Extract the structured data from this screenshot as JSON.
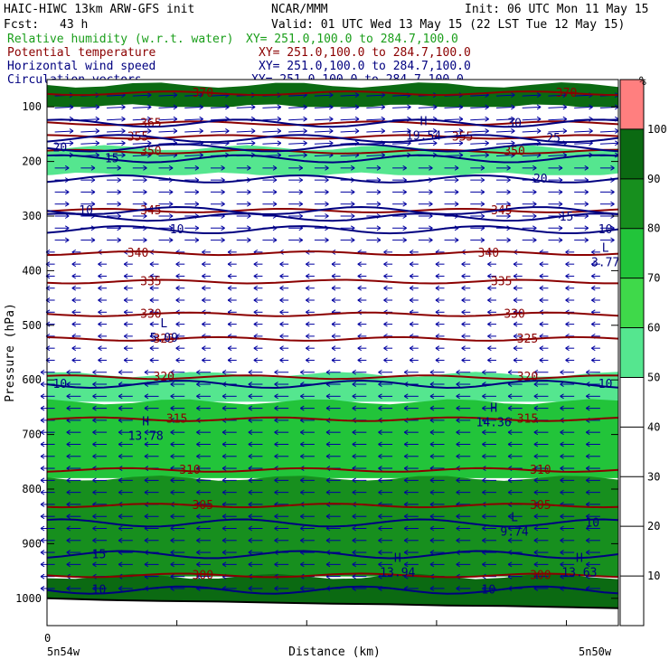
{
  "header": {
    "model": "HAIC-HIWC 13km ARW-GFS init",
    "org": "NCAR/MMM",
    "init": "Init: 06 UTC Mon 11 May 15",
    "fcst_label": "Fcst:",
    "fcst_value": "43 h",
    "valid": "Valid: 01 UTC Wed 13 May 15 (22 LST Tue 12 May 15)"
  },
  "fields": [
    {
      "name": "Relative humidity (w.r.t. water)",
      "xy": "XY= 251.0,100.0 to 284.7,100.0",
      "color": "#1a9e1a"
    },
    {
      "name": "Potential temperature",
      "xy": "XY= 251.0,100.0 to 284.7,100.0",
      "color": "#8b0000"
    },
    {
      "name": "Horizontal wind speed",
      "xy": "XY= 251.0,100.0 to 284.7,100.0",
      "color": "#000080"
    },
    {
      "name": "Circulation vectors",
      "xy": "XY= 251.0,100.0 to 284.7,100.0",
      "color": "#000080"
    }
  ],
  "colors": {
    "rh_fill": [
      "#ffffff",
      "#ffffff",
      "#ffffff",
      "#ffffff",
      "#ffffff",
      "#55e68f",
      "#3fd94a",
      "#22c43a",
      "#178f1e",
      "#0b6a12",
      "#ff7f7f"
    ],
    "theta": "#8b0000",
    "wind": "#000080",
    "vectors": "#0000a0"
  },
  "chart_data": {
    "type": "heatmap",
    "title": "",
    "xlabel": "Distance (km)",
    "ylabel": "Pressure (hPa)",
    "x_range": [
      0,
      220
    ],
    "ylim": [
      1050,
      50
    ],
    "x_start_label": "0",
    "x_endpoints": [
      "5n54w",
      "5n50w"
    ],
    "y_ticks": [
      100,
      200,
      300,
      400,
      500,
      600,
      700,
      800,
      900,
      1000
    ],
    "colorbar": {
      "unit": "%",
      "ticks": [
        10,
        20,
        30,
        40,
        50,
        60,
        70,
        80,
        90,
        100
      ],
      "bins": [
        0,
        10,
        20,
        30,
        40,
        50,
        60,
        70,
        80,
        90,
        100,
        110
      ]
    },
    "rh_layers": [
      {
        "p_top": 60,
        "p_bottom": 100,
        "rh": 95
      },
      {
        "p_top": 100,
        "p_bottom": 175,
        "rh": 30
      },
      {
        "p_top": 175,
        "p_bottom": 225,
        "rh": 58
      },
      {
        "p_top": 225,
        "p_bottom": 590,
        "rh": 30
      },
      {
        "p_top": 590,
        "p_bottom": 640,
        "rh": 58
      },
      {
        "p_top": 640,
        "p_bottom": 780,
        "rh": 75
      },
      {
        "p_top": 780,
        "p_bottom": 960,
        "rh": 86
      },
      {
        "p_top": 960,
        "p_bottom": 1020,
        "rh": 92
      }
    ],
    "theta_contours": [
      {
        "level": 300,
        "p": 958,
        "labels": [
          {
            "x": 60,
            "text": "300"
          },
          {
            "x": 190,
            "text": "300"
          }
        ]
      },
      {
        "level": 305,
        "p": 830,
        "labels": [
          {
            "x": 60,
            "text": "305"
          },
          {
            "x": 190,
            "text": "305"
          }
        ]
      },
      {
        "level": 310,
        "p": 765,
        "labels": [
          {
            "x": 55,
            "text": "310"
          },
          {
            "x": 190,
            "text": "310"
          }
        ]
      },
      {
        "level": 315,
        "p": 672,
        "labels": [
          {
            "x": 50,
            "text": "315"
          },
          {
            "x": 185,
            "text": "315"
          }
        ]
      },
      {
        "level": 320,
        "p": 595,
        "labels": [
          {
            "x": 45,
            "text": "320"
          },
          {
            "x": 185,
            "text": "320"
          }
        ]
      },
      {
        "level": 325,
        "p": 525,
        "labels": [
          {
            "x": 45,
            "text": "325"
          },
          {
            "x": 185,
            "text": "325"
          }
        ]
      },
      {
        "level": 330,
        "p": 480,
        "labels": [
          {
            "x": 40,
            "text": "330"
          },
          {
            "x": 180,
            "text": "330"
          }
        ]
      },
      {
        "level": 335,
        "p": 420,
        "labels": [
          {
            "x": 40,
            "text": "335"
          },
          {
            "x": 175,
            "text": "335"
          }
        ]
      },
      {
        "level": 340,
        "p": 368,
        "labels": [
          {
            "x": 35,
            "text": "340"
          },
          {
            "x": 170,
            "text": "340"
          }
        ]
      },
      {
        "level": 345,
        "p": 290,
        "labels": [
          {
            "x": 40,
            "text": "345"
          },
          {
            "x": 175,
            "text": "345"
          }
        ]
      },
      {
        "level": 350,
        "p": 182,
        "labels": [
          {
            "x": 40,
            "text": "350"
          },
          {
            "x": 180,
            "text": "350"
          }
        ]
      },
      {
        "level": 355,
        "p": 155,
        "labels": [
          {
            "x": 35,
            "text": "355"
          },
          {
            "x": 160,
            "text": "355"
          }
        ]
      },
      {
        "level": 365,
        "p": 130,
        "labels": [
          {
            "x": 40,
            "text": "365"
          }
        ]
      },
      {
        "level": 370,
        "p": 75,
        "labels": [
          {
            "x": 60,
            "text": "370"
          },
          {
            "x": 200,
            "text": "370"
          }
        ]
      }
    ],
    "wind_contours": [
      {
        "level": 10,
        "p": 985,
        "labels": [
          {
            "x": 20,
            "text": "10"
          },
          {
            "x": 170,
            "text": "10"
          }
        ]
      },
      {
        "level": 15,
        "p": 920,
        "labels": [
          {
            "x": 20,
            "text": "15"
          }
        ]
      },
      {
        "level": 10,
        "p": 862,
        "labels": [
          {
            "x": 210,
            "text": "10"
          }
        ]
      },
      {
        "level": 10,
        "p": 608,
        "labels": [
          {
            "x": 5,
            "text": "10"
          },
          {
            "x": 215,
            "text": "10"
          }
        ]
      },
      {
        "level": 10,
        "p": 325,
        "labels": [
          {
            "x": 50,
            "text": "10"
          },
          {
            "x": 215,
            "text": "10"
          }
        ]
      },
      {
        "level": 15,
        "p": 302,
        "labels": [
          {
            "x": 200,
            "text": "15"
          }
        ]
      },
      {
        "level": 10,
        "p": 290,
        "labels": [
          {
            "x": 15,
            "text": "10"
          }
        ]
      },
      {
        "level": 20,
        "p": 232,
        "labels": [
          {
            "x": 190,
            "text": "20"
          }
        ]
      },
      {
        "level": 15,
        "p": 195,
        "labels": [
          {
            "x": 25,
            "text": "15"
          }
        ]
      },
      {
        "level": 20,
        "p": 175,
        "labels": [
          {
            "x": 5,
            "text": "20"
          }
        ]
      },
      {
        "level": 25,
        "p": 158,
        "labels": [
          {
            "x": 195,
            "text": "25"
          }
        ]
      },
      {
        "level": 30,
        "p": 130,
        "labels": [
          {
            "x": 180,
            "text": "30"
          }
        ]
      }
    ],
    "extrema": [
      {
        "type": "H",
        "x": 145,
        "p": 140,
        "value": "19.54"
      },
      {
        "type": "L",
        "x": 215,
        "p": 372,
        "value": "3.77"
      },
      {
        "type": "L",
        "x": 45,
        "p": 510,
        "value": "5.09"
      },
      {
        "type": "H",
        "x": 38,
        "p": 690,
        "value": "13.78"
      },
      {
        "type": "H",
        "x": 172,
        "p": 665,
        "value": "14.36"
      },
      {
        "type": "L",
        "x": 180,
        "p": 865,
        "value": "9.74"
      },
      {
        "type": "H",
        "x": 135,
        "p": 940,
        "value": "13.94"
      },
      {
        "type": "H",
        "x": 205,
        "p": 940,
        "value": "13.63"
      }
    ],
    "terrain_p": [
      1000,
      1003,
      1005,
      1006,
      1008,
      1010,
      1011,
      1013,
      1014,
      1016,
      1018
    ],
    "vector_layers": [
      {
        "p_top": 70,
        "p_bottom": 210,
        "u": 12,
        "v": 1
      },
      {
        "p_top": 210,
        "p_bottom": 350,
        "u": 8,
        "v": 0
      },
      {
        "p_top": 350,
        "p_bottom": 580,
        "u": -3,
        "v": 0
      },
      {
        "p_top": 580,
        "p_bottom": 1000,
        "u": -8,
        "v": 0
      }
    ]
  }
}
